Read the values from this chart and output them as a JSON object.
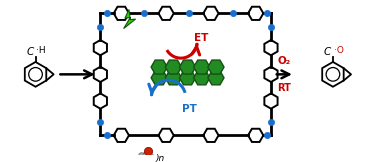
{
  "background_color": "#ffffff",
  "arrow_color": "#000000",
  "red_color": "#cc0000",
  "blue_color": "#1a6fcc",
  "green_color": "#228B22",
  "green_lightning": "#33cc00",
  "dark_green": "#145214",
  "gray_color": "#888888",
  "ET_label": "ET",
  "PT_label": "PT",
  "O2_label": "O₂",
  "RT_label": "RT",
  "water_label": ")n",
  "figsize": [
    3.78,
    1.62
  ],
  "dpi": 100
}
